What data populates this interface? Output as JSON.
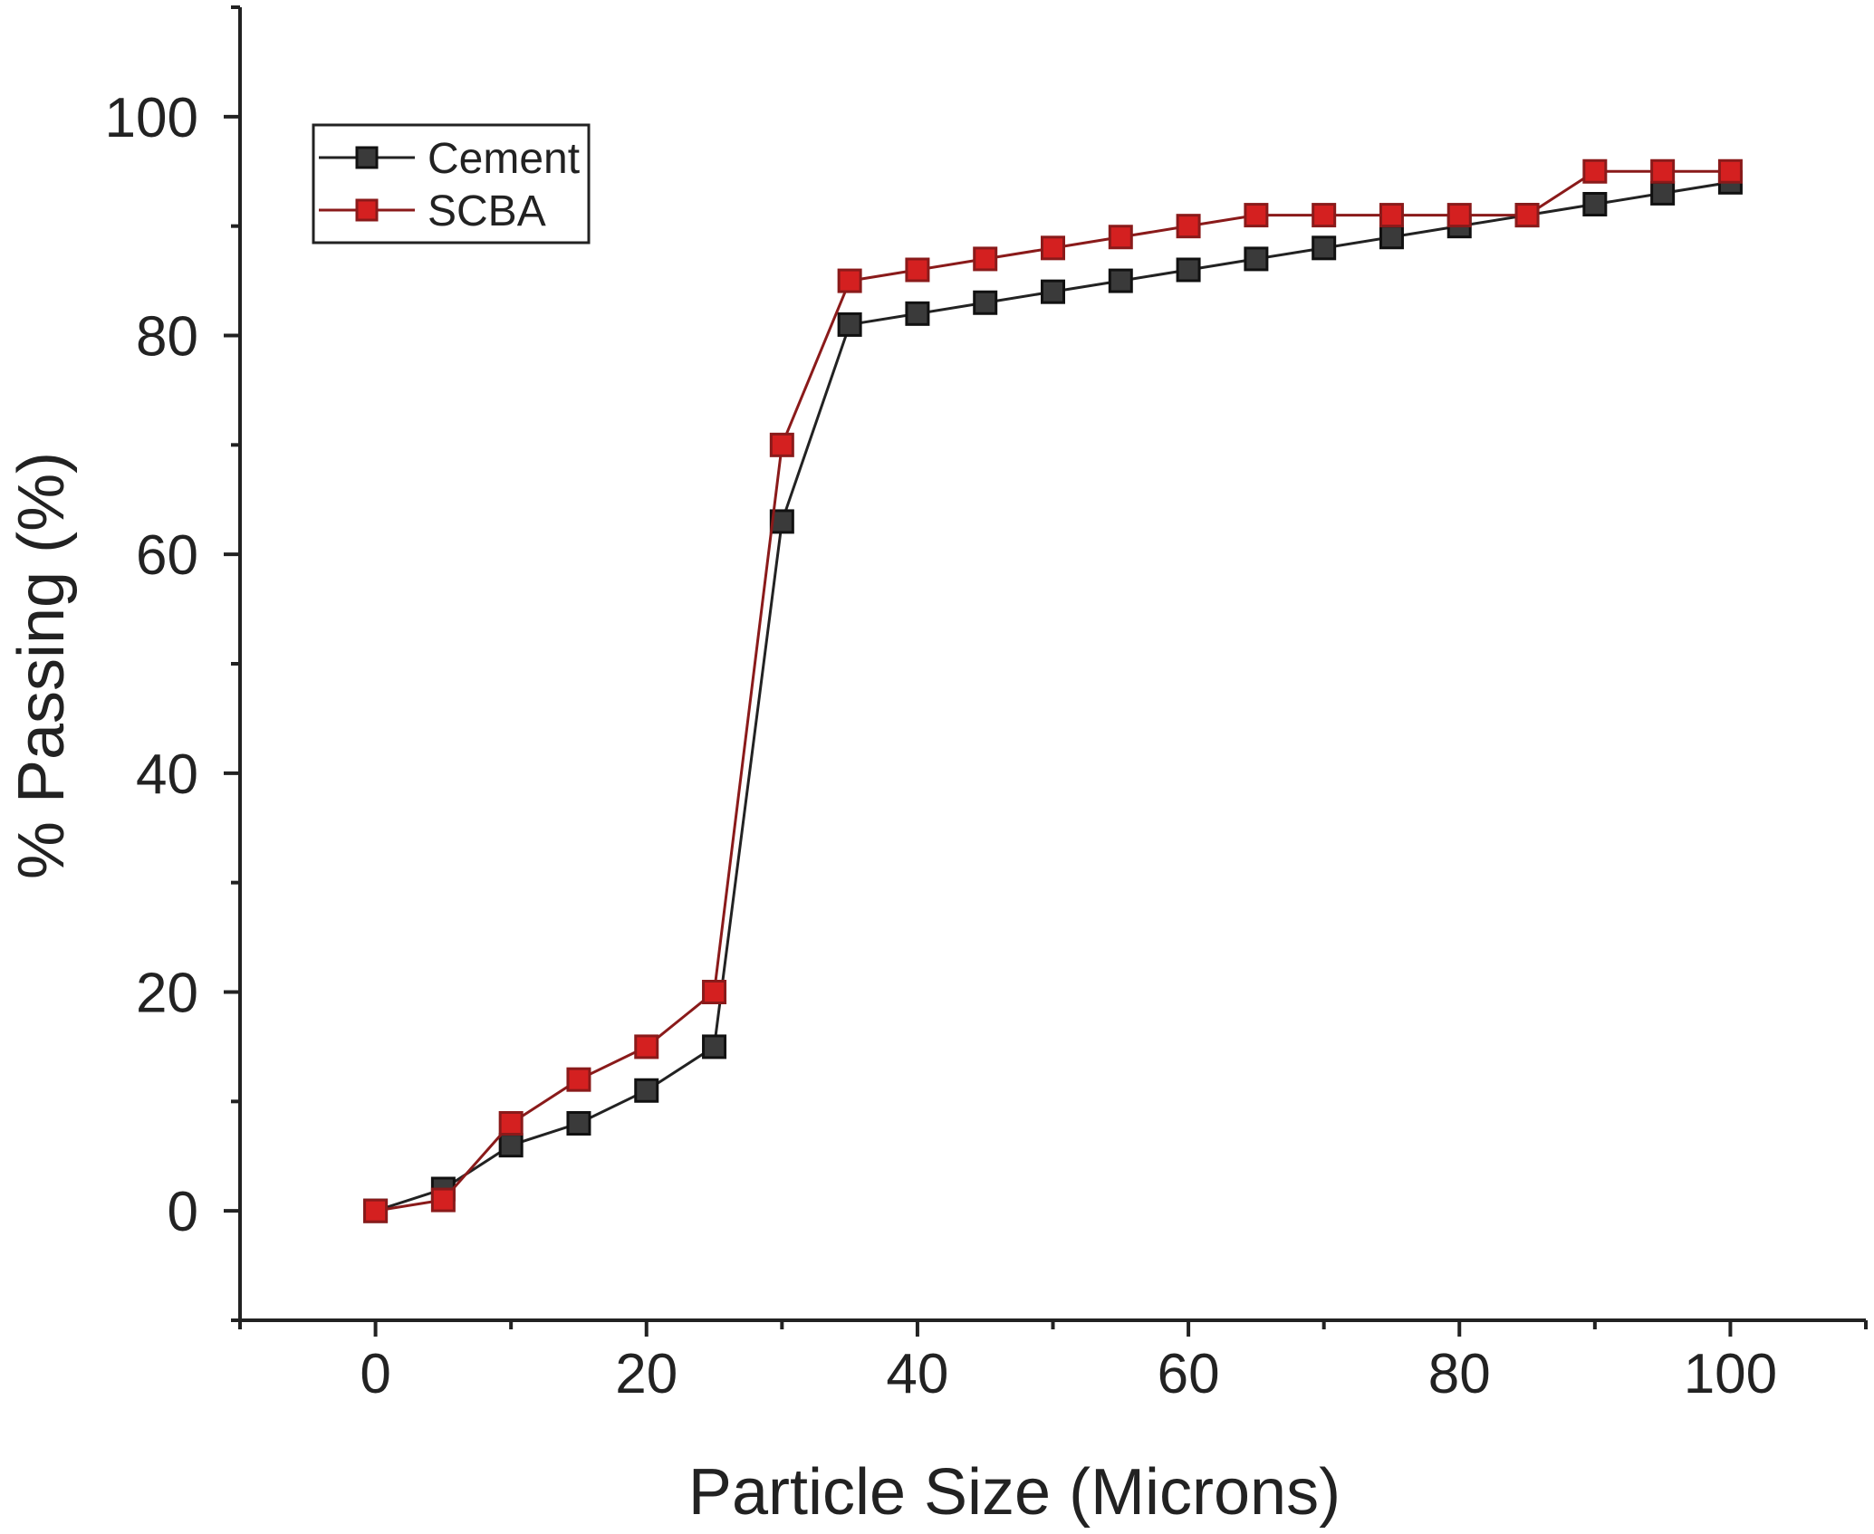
{
  "chart_data": {
    "type": "line",
    "title": "",
    "xlabel": "Particle Size (Microns)",
    "ylabel": "% Passing (%)",
    "xlim": [
      -10,
      110
    ],
    "ylim": [
      -10,
      110
    ],
    "xticks": [
      0,
      20,
      40,
      60,
      80,
      100
    ],
    "yticks": [
      0,
      20,
      40,
      60,
      80,
      100
    ],
    "x": [
      0,
      5,
      10,
      15,
      20,
      25,
      30,
      35,
      40,
      45,
      50,
      55,
      60,
      65,
      70,
      75,
      80,
      85,
      90,
      95,
      100
    ],
    "series": [
      {
        "name": "Cement",
        "color": "#222222",
        "marker": "square",
        "values": [
          0,
          2,
          6,
          8,
          11,
          15,
          63,
          81,
          82,
          83,
          84,
          85,
          86,
          87,
          88,
          89,
          90,
          91,
          92,
          93,
          94
        ]
      },
      {
        "name": "SCBA",
        "color": "#cc1f1f",
        "marker": "square",
        "values": [
          0,
          1,
          8,
          12,
          15,
          20,
          70,
          85,
          86,
          87,
          88,
          89,
          90,
          91,
          91,
          91,
          91,
          91,
          95,
          95,
          95
        ]
      }
    ],
    "legend": {
      "position": "top-left",
      "entries": [
        "Cement",
        "SCBA"
      ]
    },
    "grid": false
  }
}
